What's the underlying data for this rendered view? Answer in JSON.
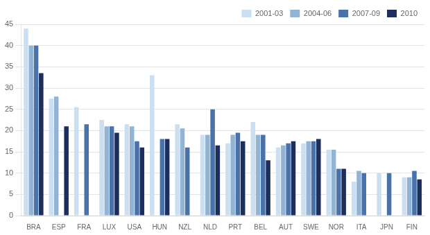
{
  "chart_data": {
    "type": "bar",
    "categories": [
      "BRA",
      "ESP",
      "FRA",
      "LUX",
      "USA",
      "HUN",
      "NZL",
      "NLD",
      "PRT",
      "BEL",
      "AUT",
      "SWE",
      "NOR",
      "ITA",
      "JPN",
      "FIN"
    ],
    "series": [
      {
        "name": "2001-03",
        "color": "#ccdff0",
        "values": [
          44,
          27.5,
          25.5,
          22.5,
          21.5,
          33,
          21.5,
          19,
          17,
          22,
          16,
          17,
          15.5,
          8,
          10,
          9
        ]
      },
      {
        "name": "2004-06",
        "color": "#92b4d4",
        "values": [
          40,
          28,
          null,
          21,
          21,
          null,
          20.5,
          19,
          19,
          19,
          16.5,
          17.5,
          15.5,
          10.5,
          null,
          9
        ]
      },
      {
        "name": "2007-09",
        "color": "#4a72aa",
        "values": [
          40,
          null,
          21.5,
          21,
          17.5,
          18,
          16,
          25,
          19.5,
          19,
          17,
          17.5,
          11,
          10,
          10,
          10.5
        ]
      },
      {
        "name": "2010",
        "color": "#1c2f5c",
        "values": [
          33.5,
          21,
          null,
          19.5,
          16,
          18,
          null,
          16.5,
          17.5,
          13,
          17.5,
          18,
          11,
          null,
          null,
          8.5
        ]
      }
    ],
    "ylim": [
      0,
      45
    ],
    "yticks": [
      0,
      5,
      10,
      15,
      20,
      25,
      30,
      35,
      40,
      45
    ],
    "grid": true,
    "legend": "upper right"
  }
}
